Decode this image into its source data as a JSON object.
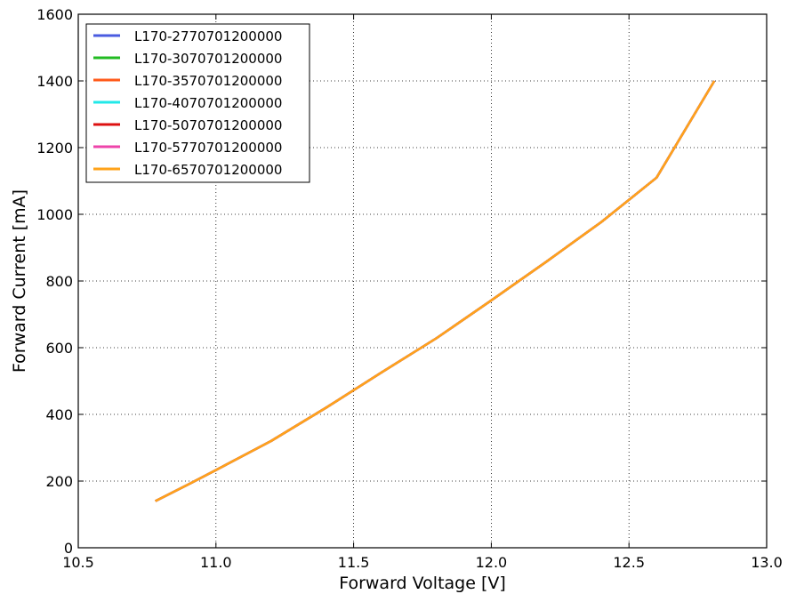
{
  "chart_data": {
    "type": "line",
    "title": "",
    "xlabel": "Forward Voltage [V]",
    "ylabel": "Forward Current [mA]",
    "xlim": [
      10.5,
      13.0
    ],
    "ylim": [
      0,
      1600
    ],
    "xticks": [
      "10.5",
      "11.0",
      "11.5",
      "12.0",
      "12.5",
      "13.0"
    ],
    "yticks": [
      "0",
      "200",
      "400",
      "600",
      "800",
      "1000",
      "1200",
      "1400",
      "1600"
    ],
    "grid": true,
    "grid_style": "dotted",
    "legend_position": "top-left",
    "x": [
      10.78,
      10.9,
      11.0,
      11.2,
      11.4,
      11.6,
      11.8,
      12.0,
      12.2,
      12.4,
      12.6,
      12.81
    ],
    "series": [
      {
        "name": "L170-2770701200000",
        "color": "#4a5be0",
        "y": [
          140,
          190,
          233,
          320,
          420,
          525,
          628,
          742,
          858,
          977,
          1110,
          1400
        ]
      },
      {
        "name": "L170-3070701200000",
        "color": "#22bb22",
        "y": [
          140,
          190,
          233,
          320,
          420,
          525,
          628,
          742,
          858,
          977,
          1110,
          1400
        ]
      },
      {
        "name": "L170-3570701200000",
        "color": "#ff5a1a",
        "y": [
          140,
          190,
          233,
          320,
          420,
          525,
          628,
          742,
          858,
          977,
          1110,
          1400
        ]
      },
      {
        "name": "L170-4070701200000",
        "color": "#22e8e8",
        "y": [
          140,
          190,
          233,
          320,
          420,
          525,
          628,
          742,
          858,
          977,
          1110,
          1400
        ]
      },
      {
        "name": "L170-5070701200000",
        "color": "#dd1111",
        "y": [
          140,
          190,
          233,
          320,
          420,
          525,
          628,
          742,
          858,
          977,
          1110,
          1400
        ]
      },
      {
        "name": "L170-5770701200000",
        "color": "#ee44aa",
        "y": [
          140,
          190,
          233,
          320,
          420,
          525,
          628,
          742,
          858,
          977,
          1110,
          1400
        ]
      },
      {
        "name": "L170-6570701200000",
        "color": "#ffa31a",
        "y": [
          140,
          190,
          233,
          320,
          420,
          525,
          628,
          742,
          858,
          977,
          1110,
          1400
        ]
      }
    ]
  }
}
